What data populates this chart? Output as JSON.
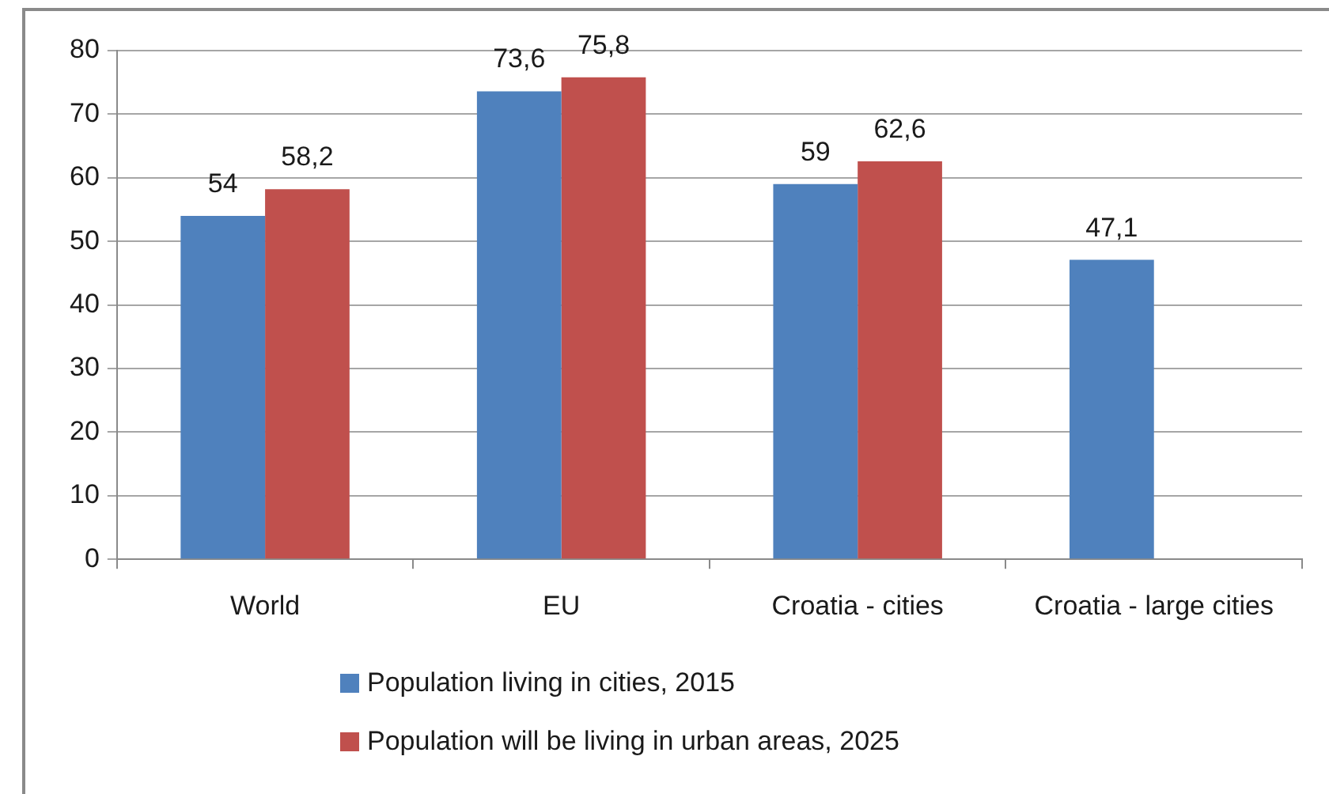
{
  "chart_data": {
    "type": "bar",
    "categories": [
      "World",
      "EU",
      "Croatia - cities",
      "Croatia - large cities"
    ],
    "series": [
      {
        "name": "Population living in cities, 2015",
        "color": "#4f81bd",
        "values": [
          54,
          73.6,
          59,
          47.1
        ],
        "value_labels": [
          "54",
          "73,6",
          "59",
          "47,1"
        ]
      },
      {
        "name": "Population will be living in urban areas, 2025",
        "color": "#c0504d",
        "values": [
          58.2,
          75.8,
          62.6,
          null
        ],
        "value_labels": [
          "58,2",
          "75,8",
          "62,6",
          null
        ]
      }
    ],
    "ylim": [
      0,
      80
    ],
    "yticks": [
      0,
      10,
      20,
      30,
      40,
      50,
      60,
      70,
      80
    ],
    "grid": "y",
    "legend": "bottom"
  }
}
